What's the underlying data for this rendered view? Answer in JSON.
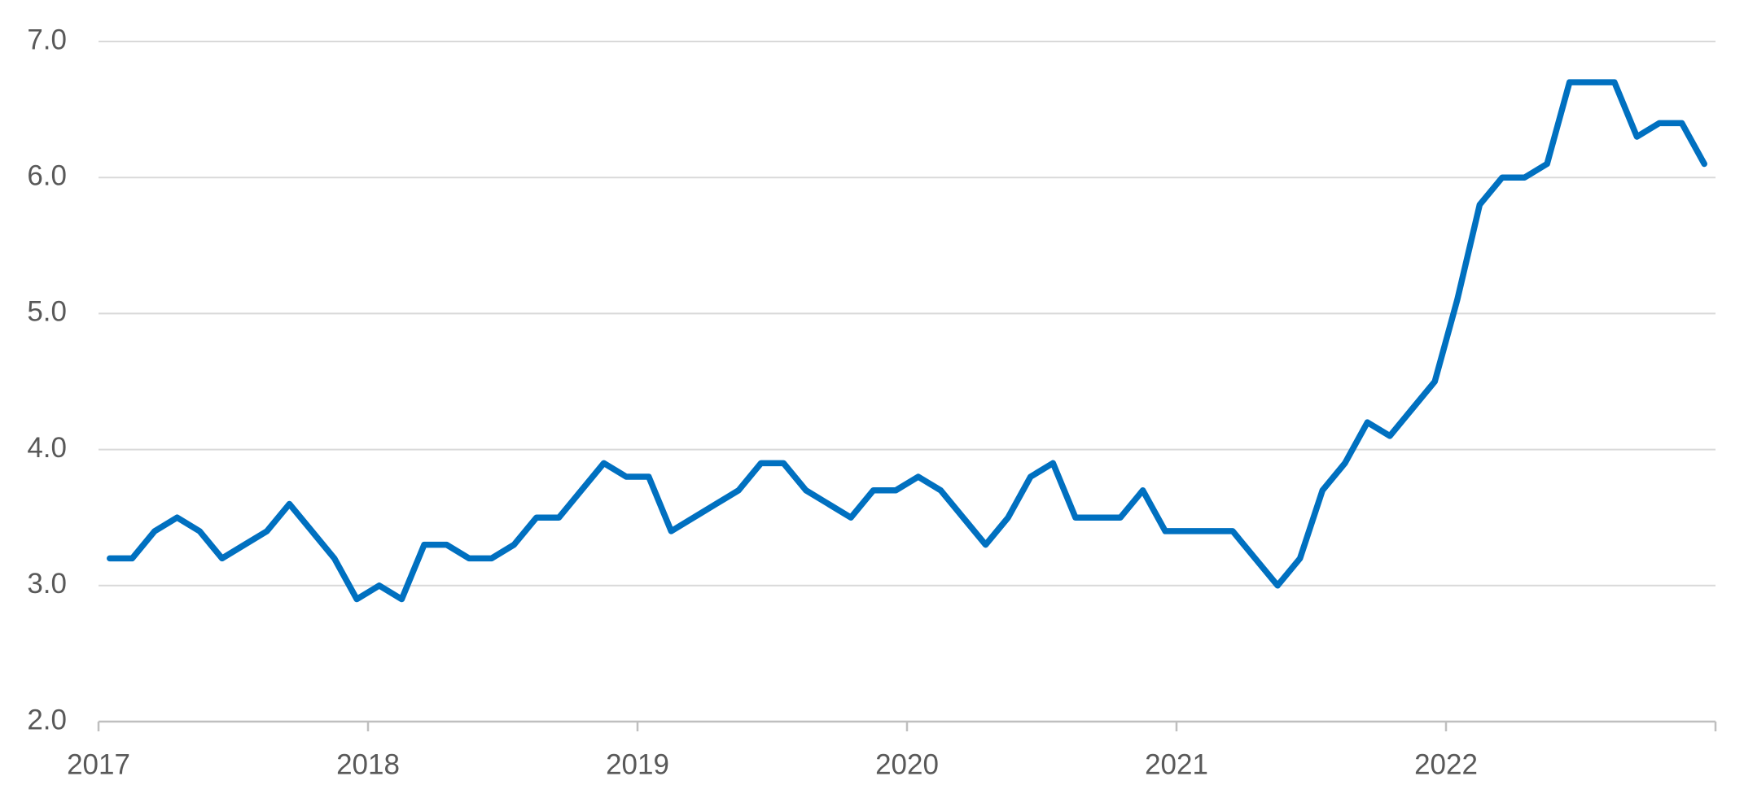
{
  "chart_data": {
    "type": "line",
    "categories": [
      "2017",
      null,
      null,
      null,
      null,
      null,
      null,
      null,
      null,
      null,
      null,
      null,
      "2018",
      null,
      null,
      null,
      null,
      null,
      null,
      null,
      null,
      null,
      null,
      null,
      "2019",
      null,
      null,
      null,
      null,
      null,
      null,
      null,
      null,
      null,
      null,
      null,
      "2020",
      null,
      null,
      null,
      null,
      null,
      null,
      null,
      null,
      null,
      null,
      null,
      "2021",
      null,
      null,
      null,
      null,
      null,
      null,
      null,
      null,
      null,
      null,
      null,
      "2022",
      null,
      null,
      null,
      null,
      null,
      null,
      null,
      null,
      null,
      null,
      null
    ],
    "values": [
      3.2,
      3.2,
      3.4,
      3.5,
      3.4,
      3.2,
      3.3,
      3.4,
      3.6,
      3.4,
      3.2,
      2.9,
      3.0,
      2.9,
      3.3,
      3.3,
      3.2,
      3.2,
      3.3,
      3.5,
      3.5,
      3.7,
      3.9,
      3.8,
      3.8,
      3.4,
      3.5,
      3.6,
      3.7,
      3.9,
      3.9,
      3.7,
      3.6,
      3.5,
      3.7,
      3.7,
      3.8,
      3.7,
      3.5,
      3.3,
      3.5,
      3.8,
      3.9,
      3.5,
      3.5,
      3.5,
      3.7,
      3.4,
      3.4,
      3.4,
      3.4,
      3.2,
      3.0,
      3.2,
      3.7,
      3.9,
      4.2,
      4.1,
      4.3,
      4.5,
      5.1,
      5.8,
      6.0,
      6.0,
      6.1,
      6.7,
      6.7,
      6.7,
      6.3,
      6.4,
      6.4,
      6.1
    ],
    "color": "#0070c0",
    "ylim": [
      2,
      7
    ],
    "yticks": [
      {
        "value": 2,
        "label": "2.0"
      },
      {
        "value": 3,
        "label": "3.0"
      },
      {
        "value": 4,
        "label": "4.0"
      },
      {
        "value": 5,
        "label": "5.0"
      },
      {
        "value": 6,
        "label": "6.0"
      },
      {
        "value": 7,
        "label": "7.0"
      }
    ],
    "grid": true
  }
}
